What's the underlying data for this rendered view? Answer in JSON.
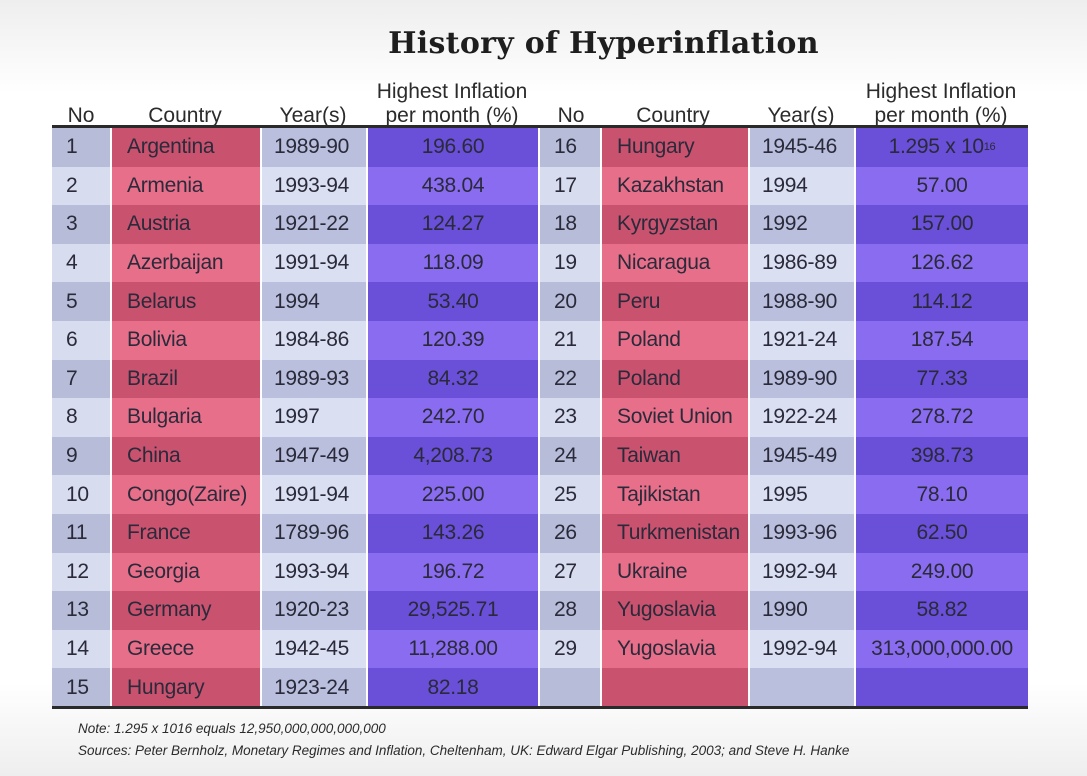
{
  "title": "History of Hyperinflation",
  "headers": {
    "no": "No",
    "country": "Country",
    "years": "Year(s)",
    "inflation_line1": "Highest Inflation",
    "inflation_line2": "per month (%)"
  },
  "left_rows": [
    {
      "no": "1",
      "country": "Argentina",
      "years": "1989-90",
      "value": "196.60"
    },
    {
      "no": "2",
      "country": "Armenia",
      "years": "1993-94",
      "value": "438.04"
    },
    {
      "no": "3",
      "country": "Austria",
      "years": "1921-22",
      "value": "124.27"
    },
    {
      "no": "4",
      "country": "Azerbaijan",
      "years": "1991-94",
      "value": "118.09"
    },
    {
      "no": "5",
      "country": "Belarus",
      "years": "1994",
      "value": "53.40"
    },
    {
      "no": "6",
      "country": "Bolivia",
      "years": "1984-86",
      "value": "120.39"
    },
    {
      "no": "7",
      "country": "Brazil",
      "years": "1989-93",
      "value": "84.32"
    },
    {
      "no": "8",
      "country": "Bulgaria",
      "years": "1997",
      "value": "242.70"
    },
    {
      "no": "9",
      "country": "China",
      "years": "1947-49",
      "value": "4,208.73"
    },
    {
      "no": "10",
      "country": "Congo(Zaire)",
      "years": "1991-94",
      "value": "225.00"
    },
    {
      "no": "11",
      "country": "France",
      "years": "1789-96",
      "value": "143.26"
    },
    {
      "no": "12",
      "country": "Georgia",
      "years": "1993-94",
      "value": "196.72"
    },
    {
      "no": "13",
      "country": "Germany",
      "years": "1920-23",
      "value": "29,525.71"
    },
    {
      "no": "14",
      "country": "Greece",
      "years": "1942-45",
      "value": "11,288.00"
    },
    {
      "no": "15",
      "country": "Hungary",
      "years": "1923-24",
      "value": "82.18"
    }
  ],
  "right_rows": [
    {
      "no": "16",
      "country": "Hungary",
      "years": "1945-46",
      "value": "1.295 x 10",
      "value_sup": "16"
    },
    {
      "no": "17",
      "country": "Kazakhstan",
      "years": "1994",
      "value": "57.00"
    },
    {
      "no": "18",
      "country": "Kyrgyzstan",
      "years": "1992",
      "value": "157.00"
    },
    {
      "no": "19",
      "country": "Nicaragua",
      "years": "1986-89",
      "value": "126.62"
    },
    {
      "no": "20",
      "country": "Peru",
      "years": "1988-90",
      "value": "114.12"
    },
    {
      "no": "21",
      "country": "Poland",
      "years": "1921-24",
      "value": "187.54"
    },
    {
      "no": "22",
      "country": "Poland",
      "years": "1989-90",
      "value": "77.33"
    },
    {
      "no": "23",
      "country": "Soviet Union",
      "years": "1922-24",
      "value": "278.72"
    },
    {
      "no": "24",
      "country": "Taiwan",
      "years": "1945-49",
      "value": "398.73"
    },
    {
      "no": "25",
      "country": "Tajikistan",
      "years": "1995",
      "value": "78.10"
    },
    {
      "no": "26",
      "country": "Turkmenistan",
      "years": "1993-96",
      "value": "62.50"
    },
    {
      "no": "27",
      "country": "Ukraine",
      "years": "1992-94",
      "value": "249.00"
    },
    {
      "no": "28",
      "country": "Yugoslavia",
      "years": "1990",
      "value": "58.82"
    },
    {
      "no": "29",
      "country": "Yugoslavia",
      "years": "1992-94",
      "value": "313,000,000.00"
    },
    {
      "no": "",
      "country": "",
      "years": "",
      "value": ""
    }
  ],
  "note": "Note: 1.295 x 1016 equals 12,950,000,000,000,000",
  "sources": "Sources: Peter Bernholz, Monetary Regimes and Inflation, Cheltenham, UK: Edward Elgar Publishing, 2003; and Steve H. Hanke",
  "colors": {
    "no_light": "#d7dcee",
    "no_dark": "#b7bdd9",
    "country_light": "#e86f8a",
    "country_dark": "#c9526f",
    "year_light": "#dadff2",
    "year_dark": "#b9bfdc",
    "value_light": "#8a6cf0",
    "value_dark": "#6a4fd8",
    "text": "#2a2a3a"
  }
}
